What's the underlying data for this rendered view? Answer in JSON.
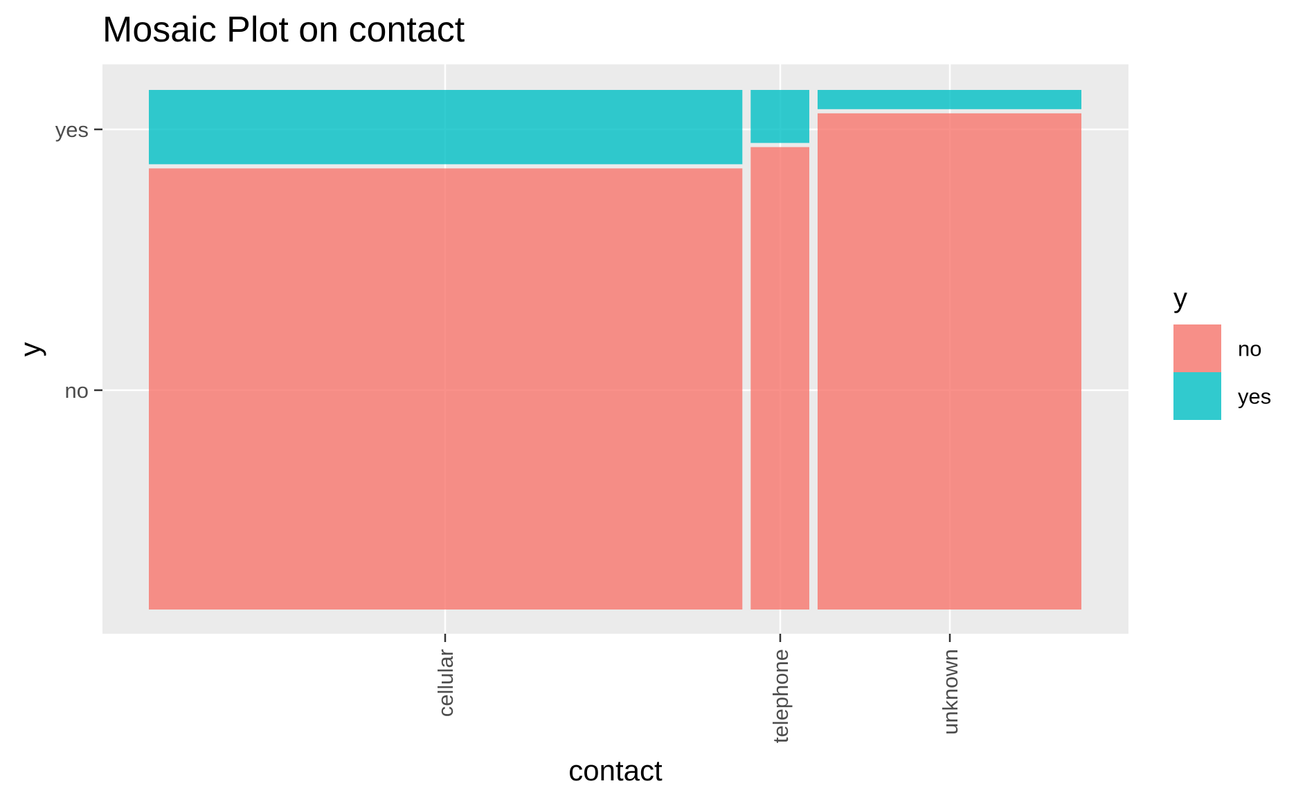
{
  "chart_data": {
    "type": "mosaic",
    "title": "Mosaic Plot on contact",
    "xlabel": "contact",
    "ylabel": "y",
    "categories": [
      "cellular",
      "telephone",
      "unknown"
    ],
    "category_widths": [
      0.648,
      0.064,
      0.288
    ],
    "series": [
      {
        "name": "no",
        "values": [
          0.853,
          0.894,
          0.959
        ]
      },
      {
        "name": "yes",
        "values": [
          0.147,
          0.106,
          0.041
        ]
      }
    ],
    "y_ticks": [
      "no",
      "yes"
    ],
    "legend": {
      "title": "y",
      "position": "right",
      "items": [
        "no",
        "yes"
      ]
    },
    "colors": {
      "no": "#F8766D",
      "yes": "#00BFC4",
      "panel": "#EBEBEB",
      "grid": "#FFFFFF"
    },
    "grid": true
  }
}
